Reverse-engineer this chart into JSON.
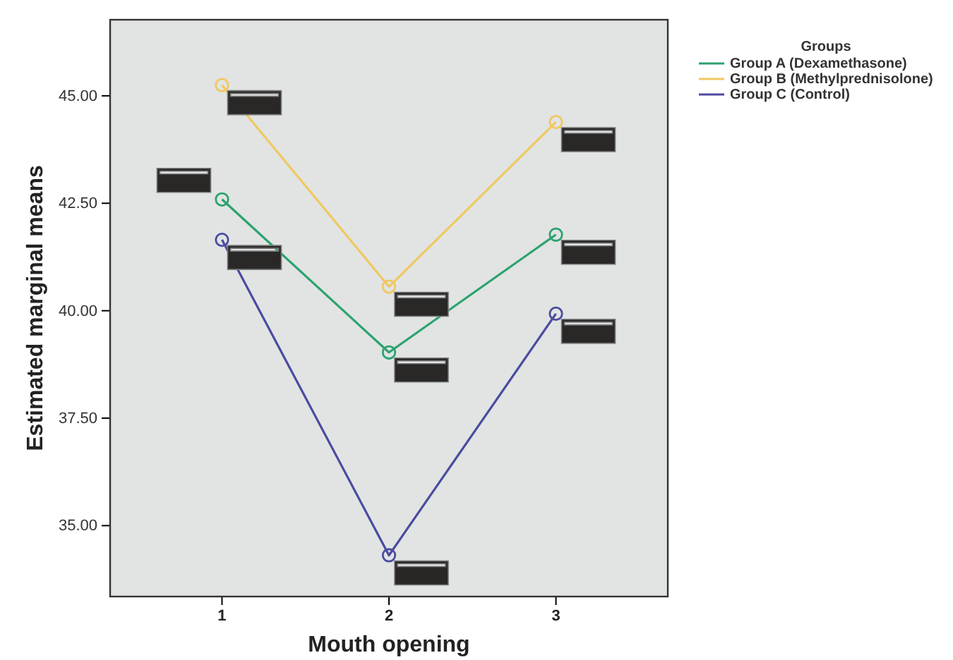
{
  "chart_data": {
    "type": "line",
    "xlabel": "Mouth opening",
    "ylabel": "Estimated marginal means",
    "legend_title": "Groups",
    "x": [
      1,
      2,
      3
    ],
    "xlim": [
      0.33,
      3.67
    ],
    "xticks": [
      1,
      2,
      3
    ],
    "ylim": [
      33.35,
      46.77
    ],
    "yticks": [
      {
        "value": 35,
        "label": "35.00"
      },
      {
        "value": 37.5,
        "label": "37.50"
      },
      {
        "value": 40,
        "label": "40.00"
      },
      {
        "value": 42.5,
        "label": "42.50"
      },
      {
        "value": 45,
        "label": "45.00"
      }
    ],
    "series": [
      {
        "name": "Group A (Dexamethasone)",
        "color": "#2ba36e",
        "values": [
          42.59,
          39.03,
          41.77
        ]
      },
      {
        "name": "Group B (Methylprednisolone)",
        "color": "#f0c860",
        "values": [
          45.25,
          40.56,
          44.39
        ]
      },
      {
        "name": "Group C (Control)",
        "color": "#4b4ba0",
        "values": [
          41.65,
          34.31,
          39.93
        ]
      }
    ],
    "marker": "circle",
    "legend": "top right",
    "grid": false
  }
}
